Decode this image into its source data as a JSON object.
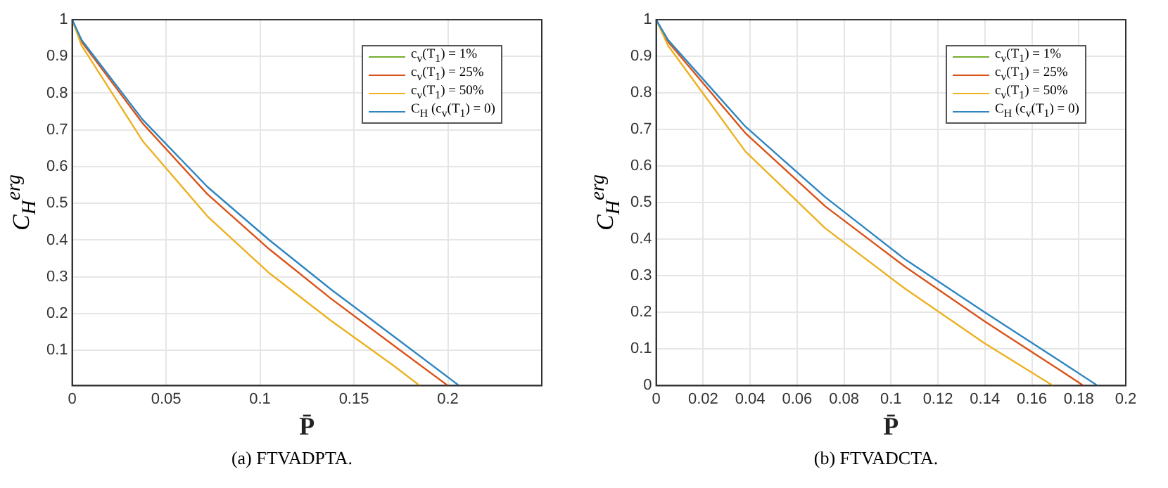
{
  "chart_data": [
    {
      "type": "line",
      "title": "(a) FTVADPTA.",
      "xlabel": "P̄",
      "ylabel": "C$_{H}$$^{erg}$",
      "xlim": [
        0,
        0.25
      ],
      "ylim": [
        0.004,
        1
      ],
      "xticks": [
        0,
        0.05,
        0.1,
        0.15,
        0.2
      ],
      "yticks": [
        0.1,
        0.2,
        0.3,
        0.4,
        0.5,
        0.6,
        0.7,
        0.8,
        0.9,
        1
      ],
      "grid": true,
      "legend": "top right",
      "marker": "none",
      "line_style": "solid",
      "series": [
        {
          "name": "c$_{v}$(T$_{1}$) = 1%",
          "color": "#77ac30"
        },
        {
          "name": "c$_{v}$(T$_{1}$) = 25%",
          "color": "#d95319",
          "x": [
            0,
            0.005,
            0.0375,
            0.072,
            0.105,
            0.138,
            0.172,
            0.2
          ],
          "values": [
            1,
            0.94,
            0.718,
            0.525,
            0.375,
            0.24,
            0.11,
            0.004
          ]
        },
        {
          "name": "c$_{v}$(T$_{1}$) = 50%",
          "color": "#edb120",
          "x": [
            0,
            0.005,
            0.0375,
            0.072,
            0.105,
            0.138,
            0.172,
            0.185
          ],
          "values": [
            1,
            0.93,
            0.67,
            0.465,
            0.31,
            0.18,
            0.055,
            0.004
          ]
        },
        {
          "name": "C$_{H}$ (c$_{v}$(T$_{1}$) = 0)",
          "color": "#2e86c1",
          "x": [
            0,
            0.005,
            0.0375,
            0.072,
            0.105,
            0.138,
            0.172,
            0.206
          ],
          "values": [
            1,
            0.945,
            0.728,
            0.545,
            0.4,
            0.265,
            0.135,
            0.004
          ]
        }
      ]
    },
    {
      "type": "line",
      "title": "(b) FTVADCTA.",
      "xlabel": "P̄",
      "ylabel": "C$_{H}$$^{erg}$",
      "xlim": [
        0,
        0.2
      ],
      "ylim": [
        0,
        1
      ],
      "xticks": [
        0,
        0.02,
        0.04,
        0.06,
        0.08,
        0.1,
        0.12,
        0.14,
        0.16,
        0.18,
        0.2
      ],
      "yticks": [
        0,
        0.1,
        0.2,
        0.3,
        0.4,
        0.5,
        0.6,
        0.7,
        0.8,
        0.9,
        1
      ],
      "grid": true,
      "legend": "top right",
      "marker": "none",
      "line_style": "solid",
      "series": [
        {
          "name": "c$_{v}$(T$_{1}$) = 1%",
          "color": "#77ac30"
        },
        {
          "name": "c$_{v}$(T$_{1}$) = 25%",
          "color": "#d95319",
          "x": [
            0,
            0.005,
            0.038,
            0.072,
            0.106,
            0.14,
            0.172,
            0.182
          ],
          "values": [
            1,
            0.94,
            0.69,
            0.49,
            0.325,
            0.175,
            0.042,
            0
          ]
        },
        {
          "name": "c$_{v}$(T$_{1}$) = 50%",
          "color": "#edb120",
          "x": [
            0,
            0.005,
            0.038,
            0.072,
            0.106,
            0.14,
            0.169
          ],
          "values": [
            1,
            0.93,
            0.64,
            0.43,
            0.265,
            0.115,
            0
          ]
        },
        {
          "name": "C$_{H}$ (c$_{v}$(T$_{1}$) = 0)",
          "color": "#2e86c1",
          "x": [
            0,
            0.005,
            0.038,
            0.072,
            0.106,
            0.14,
            0.172,
            0.188
          ],
          "values": [
            1,
            0.945,
            0.708,
            0.515,
            0.345,
            0.2,
            0.067,
            0
          ]
        }
      ]
    }
  ]
}
